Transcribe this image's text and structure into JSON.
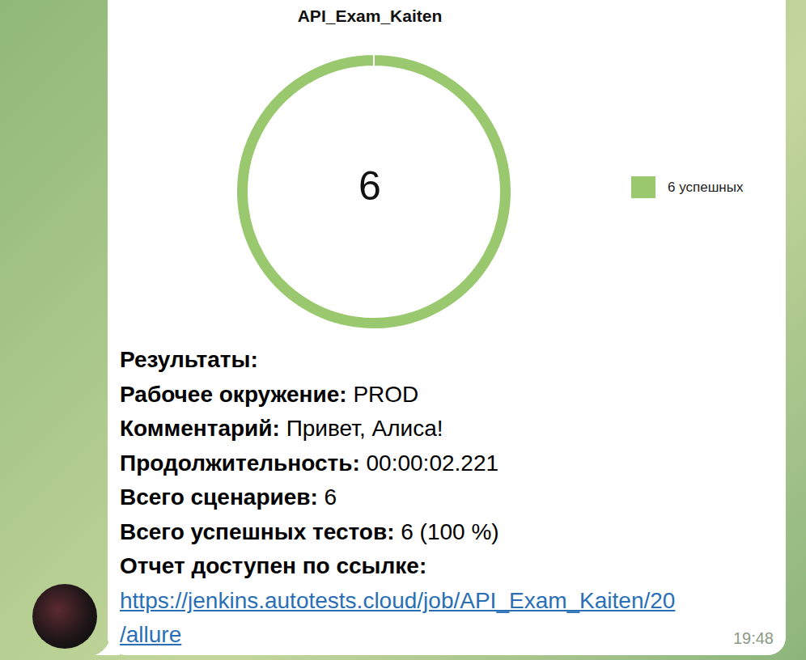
{
  "chart_data": {
    "type": "donut",
    "title": "API_Exam_Kaiten",
    "categories": [
      "6 успешных"
    ],
    "values": [
      6
    ],
    "colors": [
      "#99c86e"
    ],
    "total": 6,
    "legend": "right"
  },
  "message": {
    "heading": "Результаты:",
    "fields": [
      {
        "label": "Рабочее окружение:",
        "value": "PROD"
      },
      {
        "label": "Комментарий:",
        "value": "Привет, Алиса!"
      },
      {
        "label": "Продолжительность:",
        "value": "00:00:02.221"
      },
      {
        "label": "Всего сценариев:",
        "value": "6"
      },
      {
        "label": "Всего успешных тестов:",
        "value": "6 (100 %)"
      }
    ],
    "link_label": "Отчет доступен по ссылке:",
    "link": "https://jenkins.autotests.cloud/job/API_Exam_Kaiten/20/allure",
    "time": "19:48"
  }
}
